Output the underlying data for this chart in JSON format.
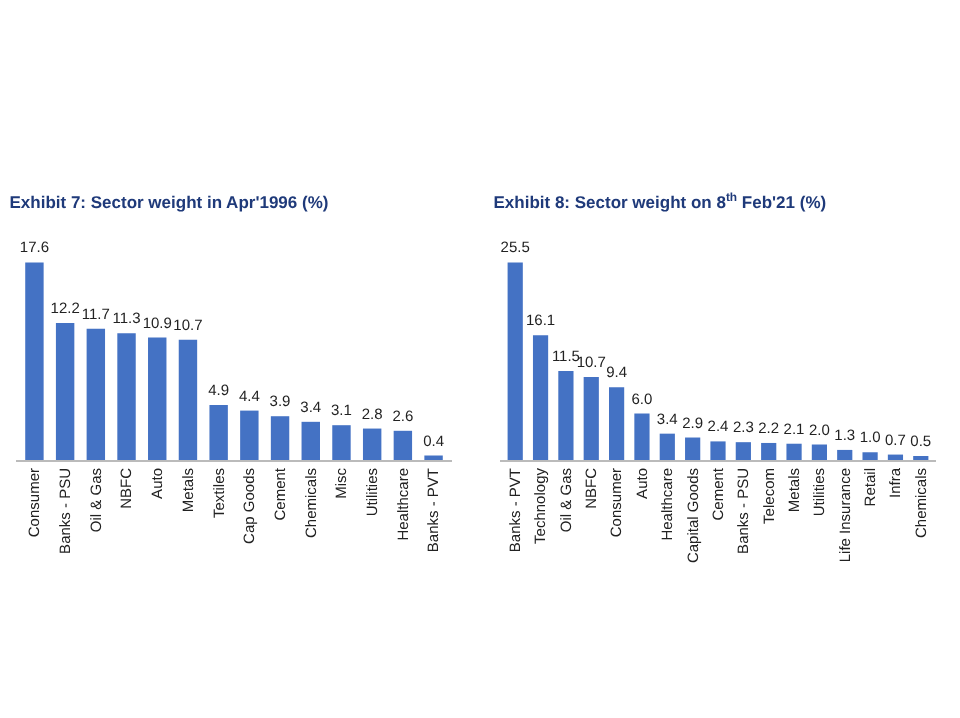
{
  "chart_data": [
    {
      "type": "bar",
      "title": "Exhibit 7: Sector weight in Apr'1996 (%)",
      "categories": [
        "Consumer",
        "Banks - PSU",
        "Oil & Gas",
        "NBFC",
        "Auto",
        "Metals",
        "Textiles",
        "Cap Goods",
        "Cement",
        "Chemicals",
        "Misc",
        "Utilities",
        "Healthcare",
        "Banks - PVT"
      ],
      "values": [
        17.6,
        12.2,
        11.7,
        11.3,
        10.9,
        10.7,
        4.9,
        4.4,
        3.9,
        3.4,
        3.1,
        2.8,
        2.6,
        0.4
      ],
      "color": "#4472c4",
      "data_labels": true
    },
    {
      "type": "bar",
      "title": "Exhibit 8: Sector weight on 8$^{th}$ Feb'21 (%)",
      "categories": [
        "Banks - PVT",
        "Technology",
        "Oil & Gas",
        "NBFC",
        "Consumer",
        "Auto",
        "Healthcare",
        "Capital Goods",
        "Cement",
        "Banks - PSU",
        "Telecom",
        "Metals",
        "Utilities",
        "Life Insurance",
        "Retail",
        "Infra",
        "Chemicals"
      ],
      "values": [
        25.5,
        16.1,
        11.5,
        10.7,
        9.4,
        6.0,
        3.4,
        2.9,
        2.4,
        2.3,
        2.2,
        2.1,
        2.0,
        1.3,
        1.0,
        0.7,
        0.5
      ],
      "color": "#4472c4",
      "value_labels": [
        "25.5",
        "16.1",
        "11.5",
        "10.7",
        "9.4",
        "6.0",
        "3.4",
        "2.9",
        "2.4",
        "2.3",
        "2.2",
        "2.1",
        "2.0",
        "1.3",
        "1.0",
        "0.7",
        "0.5"
      ]
    }
  ]
}
